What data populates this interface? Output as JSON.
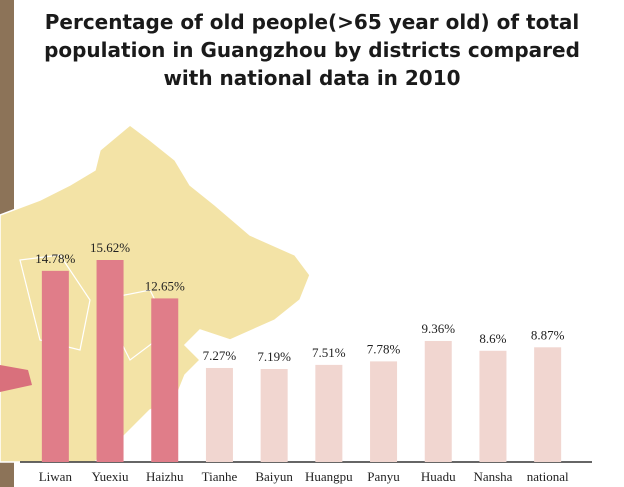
{
  "chart_data": {
    "type": "bar",
    "title": "Percentage of old people(>65 year old) of total population in Guangzhou by districts compared with national data in 2010",
    "categories": [
      "Liwan",
      "Yuexiu",
      "Haizhu",
      "Tianhe",
      "Baiyun",
      "Huangpu",
      "Panyu",
      "Huadu",
      "Nansha",
      "national"
    ],
    "values": [
      14.78,
      15.62,
      12.65,
      7.27,
      7.19,
      7.51,
      7.78,
      9.36,
      8.6,
      8.87
    ],
    "value_labels": [
      "14.78%",
      "15.62%",
      "12.65%",
      "7.27%",
      "7.19%",
      "7.51%",
      "7.78%",
      "9.36%",
      "8.6%",
      "8.87%"
    ],
    "colors": [
      "#e07d89",
      "#e07d89",
      "#e07d89",
      "#f1d6d0",
      "#f1d6d0",
      "#f1d6d0",
      "#f1d6d0",
      "#f1d6d0",
      "#f1d6d0",
      "#f1d6d0"
    ]
  }
}
